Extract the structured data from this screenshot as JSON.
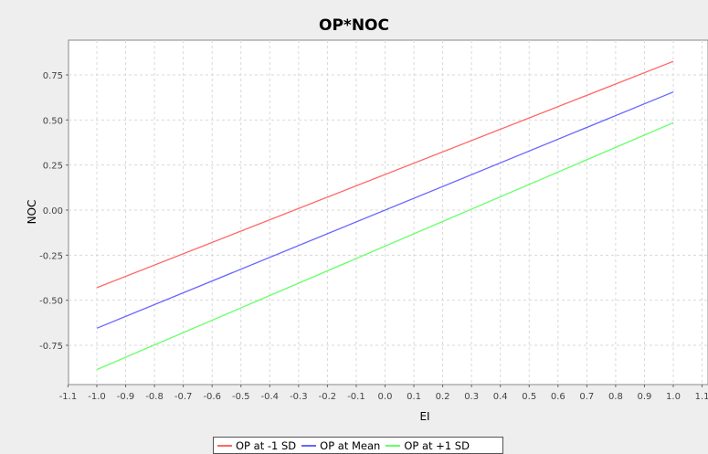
{
  "chart_data": {
    "type": "line",
    "title": "OP*NOC",
    "xlabel": "EI",
    "ylabel": "NOC",
    "xlim": [
      -1.1,
      1.1
    ],
    "ylim": [
      -1.0,
      0.93
    ],
    "x_ticks": [
      -1.1,
      -1.0,
      -0.9,
      -0.8,
      -0.7,
      -0.6,
      -0.5,
      -0.4,
      -0.3,
      -0.2,
      -0.1,
      0.0,
      0.1,
      0.2,
      0.3,
      0.4,
      0.5,
      0.6,
      0.7,
      0.8,
      0.9,
      1.0,
      1.1
    ],
    "x_tick_labels": [
      "-1.1",
      "-1.0",
      "-0.9",
      "-0.8",
      "-0.7",
      "-0.6",
      "-0.5",
      "-0.4",
      "-0.3",
      "-0.2",
      "-0.1",
      "0.0",
      "0.1",
      "0.2",
      "0.3",
      "0.4",
      "0.5",
      "0.6",
      "0.7",
      "0.8",
      "0.9",
      "1.0",
      "1.1"
    ],
    "y_ticks": [
      -0.75,
      -0.5,
      -0.25,
      0.0,
      0.25,
      0.5,
      0.75
    ],
    "y_tick_labels": [
      "-0.75",
      "-0.50",
      "-0.25",
      "0.00",
      "0.25",
      "0.50",
      "0.75"
    ],
    "grid": true,
    "legend_position": "bottom",
    "series": [
      {
        "name": "OP at -1 SD",
        "color": "#ff6666",
        "x": [
          -1.0,
          1.0
        ],
        "y": [
          -0.43,
          0.825
        ]
      },
      {
        "name": "OP at Mean",
        "color": "#6666ff",
        "x": [
          -1.0,
          1.0
        ],
        "y": [
          -0.655,
          0.655
        ]
      },
      {
        "name": "OP at +1 SD",
        "color": "#66ff66",
        "x": [
          -1.0,
          1.0
        ],
        "y": [
          -0.885,
          0.485
        ]
      }
    ]
  }
}
